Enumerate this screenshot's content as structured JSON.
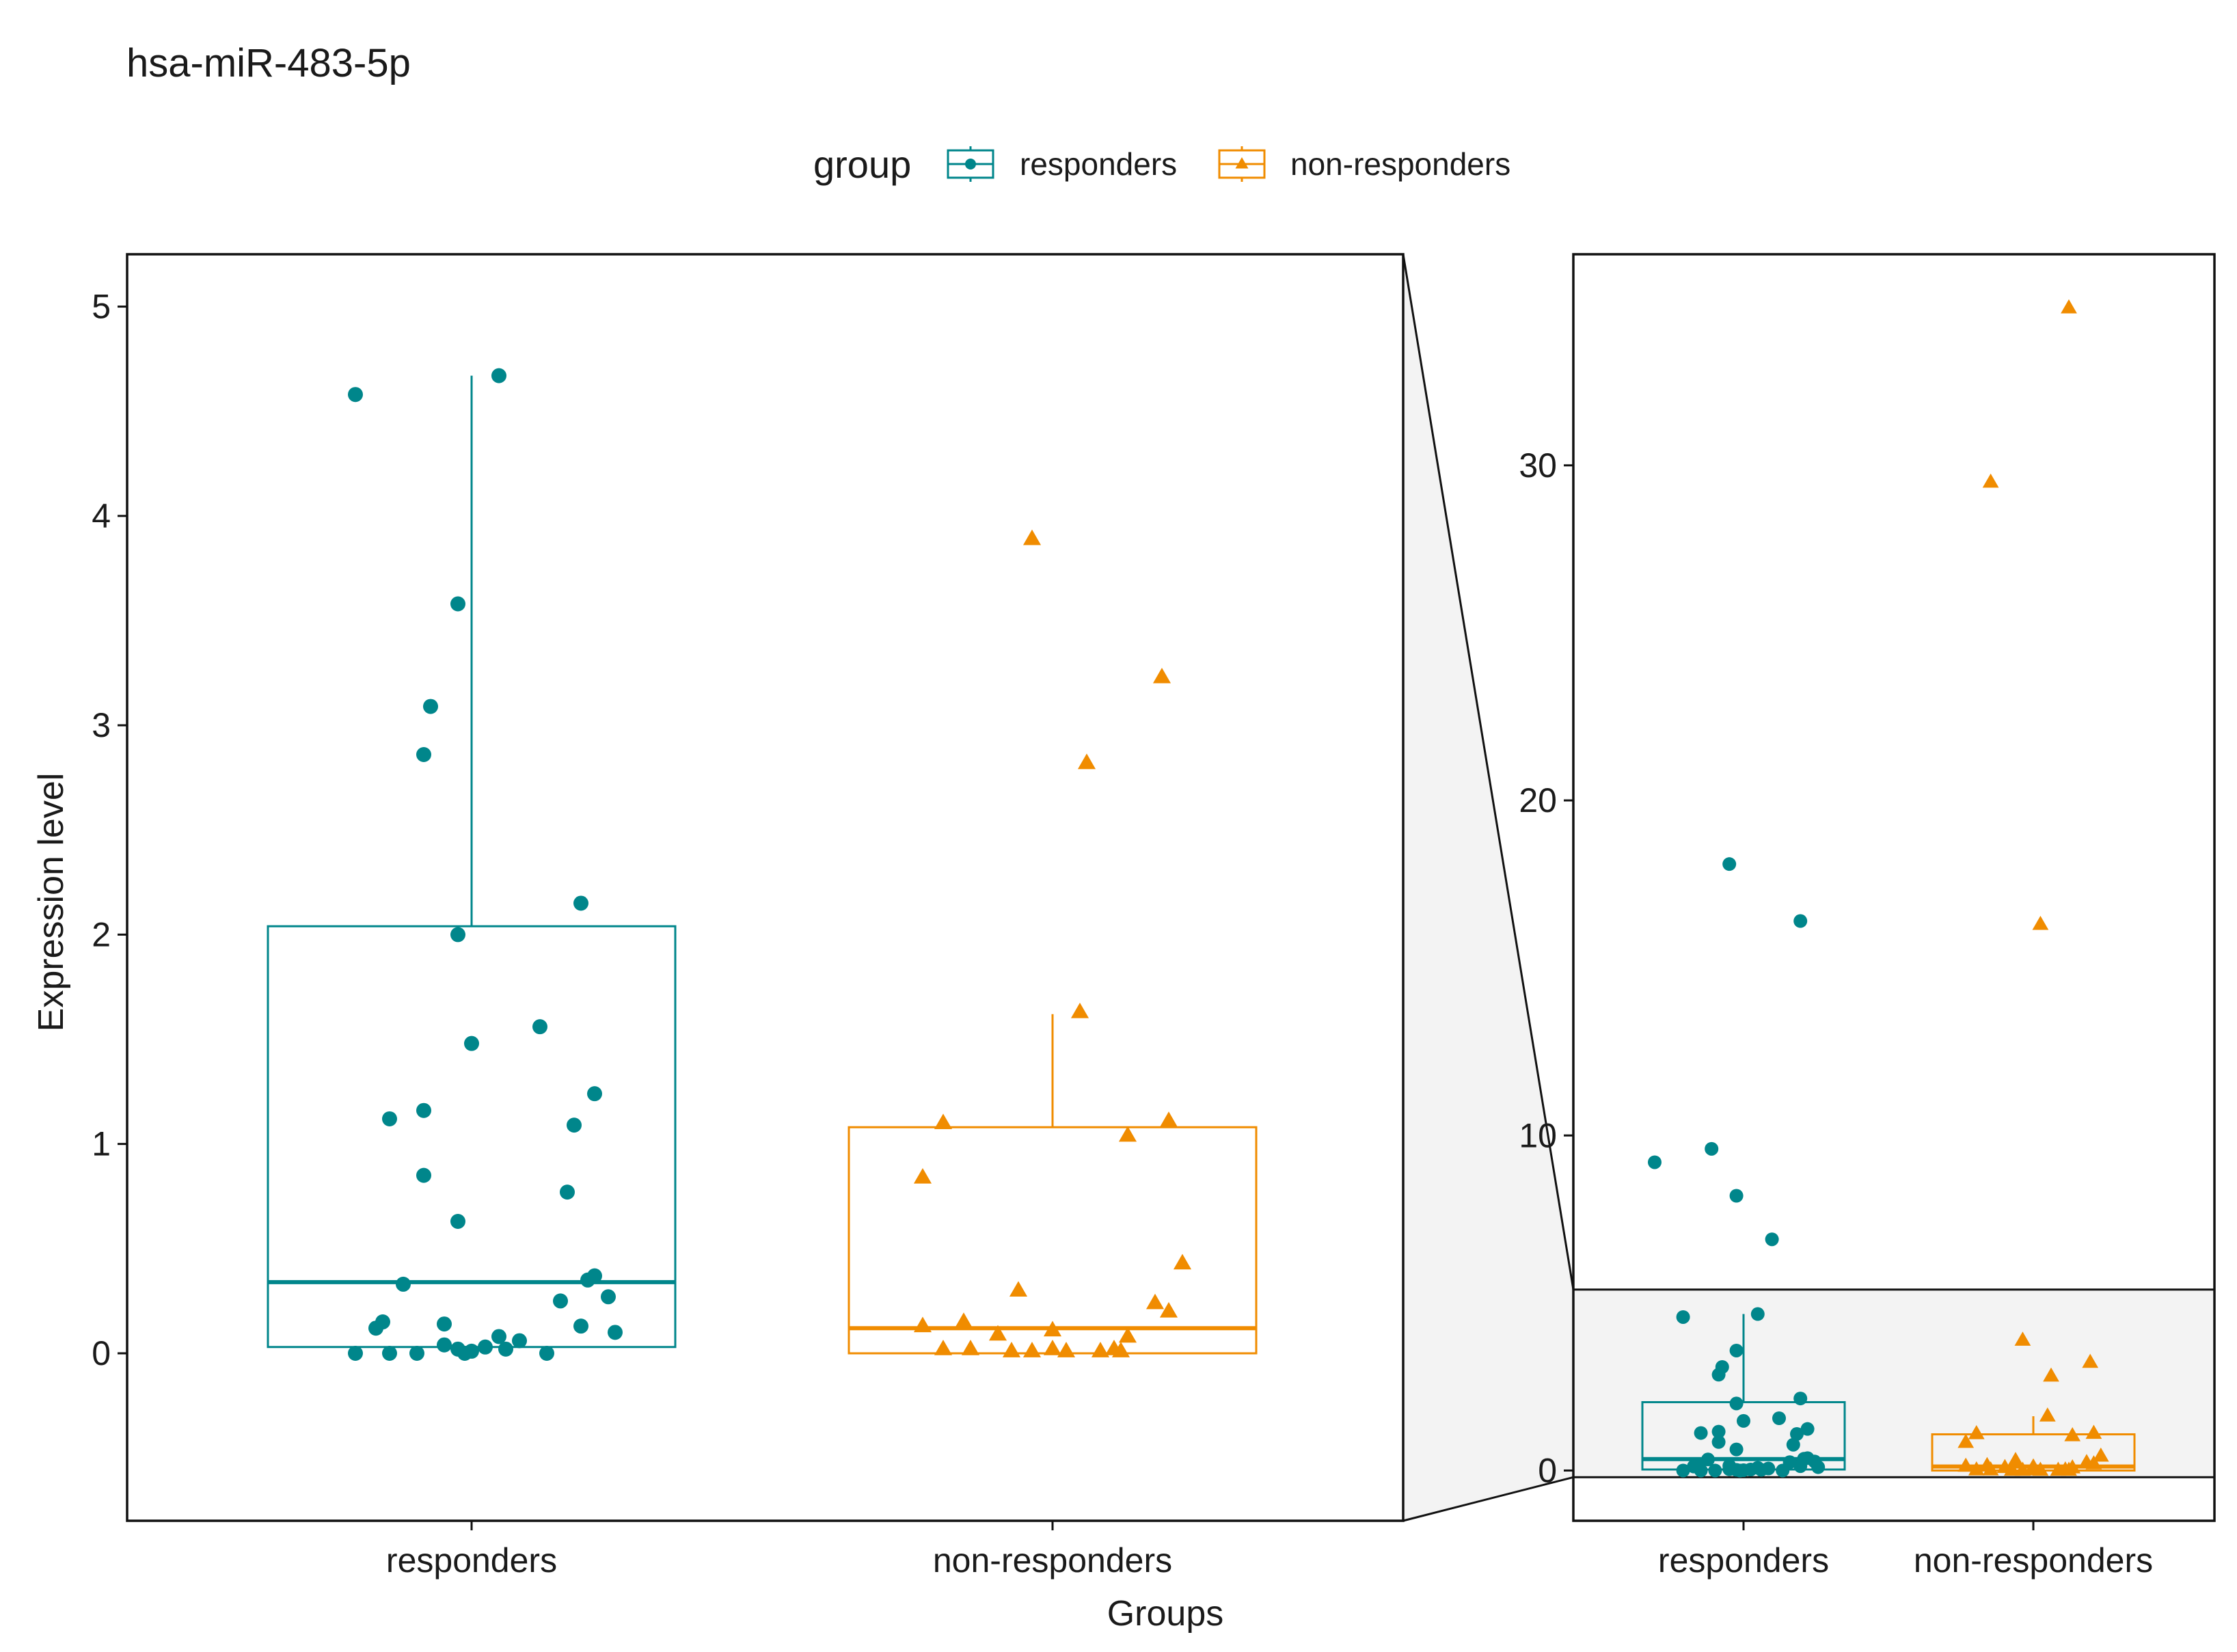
{
  "chart_data": {
    "type": "box",
    "title": "hsa-miR-483-5p",
    "xlabel": "Groups",
    "ylabel": "Expression level",
    "categories": [
      "responders",
      "non-responders"
    ],
    "legend": {
      "title": "group",
      "position": "top",
      "entries": [
        {
          "name": "responders",
          "color": "#00868B",
          "shape": "circle"
        },
        {
          "name": "non-responders",
          "color": "#F08C00",
          "shape": "triangle"
        }
      ]
    },
    "zoomed_panel": {
      "ylim": [
        -0.8,
        5.25
      ],
      "yticks": [
        0,
        1,
        2,
        3,
        4,
        5
      ],
      "ytick_labels": [
        "0",
        "1",
        "2",
        "3",
        "4",
        "5"
      ]
    },
    "full_panel": {
      "ylim": [
        -1.5,
        36.3
      ],
      "yticks": [
        0,
        10,
        20,
        30
      ],
      "ytick_labels": [
        "0",
        "10",
        "20",
        "30"
      ],
      "zoom_band": [
        -0.2,
        5.4
      ]
    },
    "series": [
      {
        "name": "responders",
        "color": "#00868B",
        "shape": "circle",
        "box": {
          "q1": 0.03,
          "median": 0.34,
          "q3": 2.04,
          "whisker_low": 0.0,
          "whisker_high": 4.67
        },
        "points": [
          {
            "x": -0.17,
            "y": 4.58
          },
          {
            "x": 0.04,
            "y": 4.67
          },
          {
            "x": -0.02,
            "y": 3.58
          },
          {
            "x": -0.06,
            "y": 3.09
          },
          {
            "x": -0.07,
            "y": 2.86
          },
          {
            "x": 0.16,
            "y": 2.15
          },
          {
            "x": -0.02,
            "y": 2.0
          },
          {
            "x": 0.1,
            "y": 1.56
          },
          {
            "x": 0.0,
            "y": 1.48
          },
          {
            "x": 0.18,
            "y": 1.24
          },
          {
            "x": -0.07,
            "y": 1.16
          },
          {
            "x": -0.12,
            "y": 1.12
          },
          {
            "x": 0.15,
            "y": 1.09
          },
          {
            "x": -0.07,
            "y": 0.85
          },
          {
            "x": 0.14,
            "y": 0.77
          },
          {
            "x": -0.02,
            "y": 0.63
          },
          {
            "x": 0.18,
            "y": 0.37
          },
          {
            "x": 0.17,
            "y": 0.35
          },
          {
            "x": -0.1,
            "y": 0.33
          },
          {
            "x": 0.2,
            "y": 0.27
          },
          {
            "x": 0.13,
            "y": 0.25
          },
          {
            "x": -0.13,
            "y": 0.15
          },
          {
            "x": -0.04,
            "y": 0.14
          },
          {
            "x": -0.14,
            "y": 0.12
          },
          {
            "x": 0.16,
            "y": 0.13
          },
          {
            "x": 0.21,
            "y": 0.1
          },
          {
            "x": 0.04,
            "y": 0.08
          },
          {
            "x": 0.07,
            "y": 0.06
          },
          {
            "x": -0.04,
            "y": 0.04
          },
          {
            "x": 0.02,
            "y": 0.03
          },
          {
            "x": -0.02,
            "y": 0.02
          },
          {
            "x": 0.05,
            "y": 0.02
          },
          {
            "x": -0.12,
            "y": 0.0
          },
          {
            "x": -0.17,
            "y": 0.0
          },
          {
            "x": -0.08,
            "y": 0.0
          },
          {
            "x": 0.0,
            "y": 0.01
          },
          {
            "x": 0.11,
            "y": 0.0
          },
          {
            "x": -0.01,
            "y": 0.0
          }
        ],
        "outliers_full": [
          {
            "x": -0.04,
            "y": 18.1
          },
          {
            "x": 0.16,
            "y": 16.4
          },
          {
            "x": -0.09,
            "y": 9.6
          },
          {
            "x": -0.25,
            "y": 9.2
          },
          {
            "x": -0.02,
            "y": 8.2
          },
          {
            "x": 0.08,
            "y": 6.9
          }
        ]
      },
      {
        "name": "non-responders",
        "color": "#F08C00",
        "shape": "triangle",
        "box": {
          "q1": 0.0,
          "median": 0.12,
          "q3": 1.08,
          "whisker_low": 0.0,
          "whisker_high": 1.62
        },
        "points": [
          {
            "x": -0.03,
            "y": 3.89
          },
          {
            "x": 0.16,
            "y": 3.23
          },
          {
            "x": 0.05,
            "y": 2.82
          },
          {
            "x": 0.04,
            "y": 1.63
          },
          {
            "x": -0.16,
            "y": 1.1
          },
          {
            "x": 0.17,
            "y": 1.11
          },
          {
            "x": 0.11,
            "y": 1.04
          },
          {
            "x": -0.19,
            "y": 0.84
          },
          {
            "x": 0.19,
            "y": 0.43
          },
          {
            "x": -0.05,
            "y": 0.3
          },
          {
            "x": 0.15,
            "y": 0.24
          },
          {
            "x": 0.17,
            "y": 0.2
          },
          {
            "x": -0.13,
            "y": 0.15
          },
          {
            "x": -0.19,
            "y": 0.13
          },
          {
            "x": 0.0,
            "y": 0.11
          },
          {
            "x": -0.08,
            "y": 0.09
          },
          {
            "x": 0.11,
            "y": 0.08
          },
          {
            "x": -0.16,
            "y": 0.02
          },
          {
            "x": -0.12,
            "y": 0.02
          },
          {
            "x": -0.06,
            "y": 0.01
          },
          {
            "x": -0.03,
            "y": 0.01
          },
          {
            "x": 0.0,
            "y": 0.02
          },
          {
            "x": 0.02,
            "y": 0.01
          },
          {
            "x": 0.07,
            "y": 0.01
          },
          {
            "x": 0.09,
            "y": 0.02
          },
          {
            "x": 0.1,
            "y": 0.01
          }
        ],
        "outliers_full": [
          {
            "x": 0.1,
            "y": 34.7
          },
          {
            "x": -0.12,
            "y": 29.5
          },
          {
            "x": 0.02,
            "y": 16.3
          }
        ]
      }
    ]
  }
}
